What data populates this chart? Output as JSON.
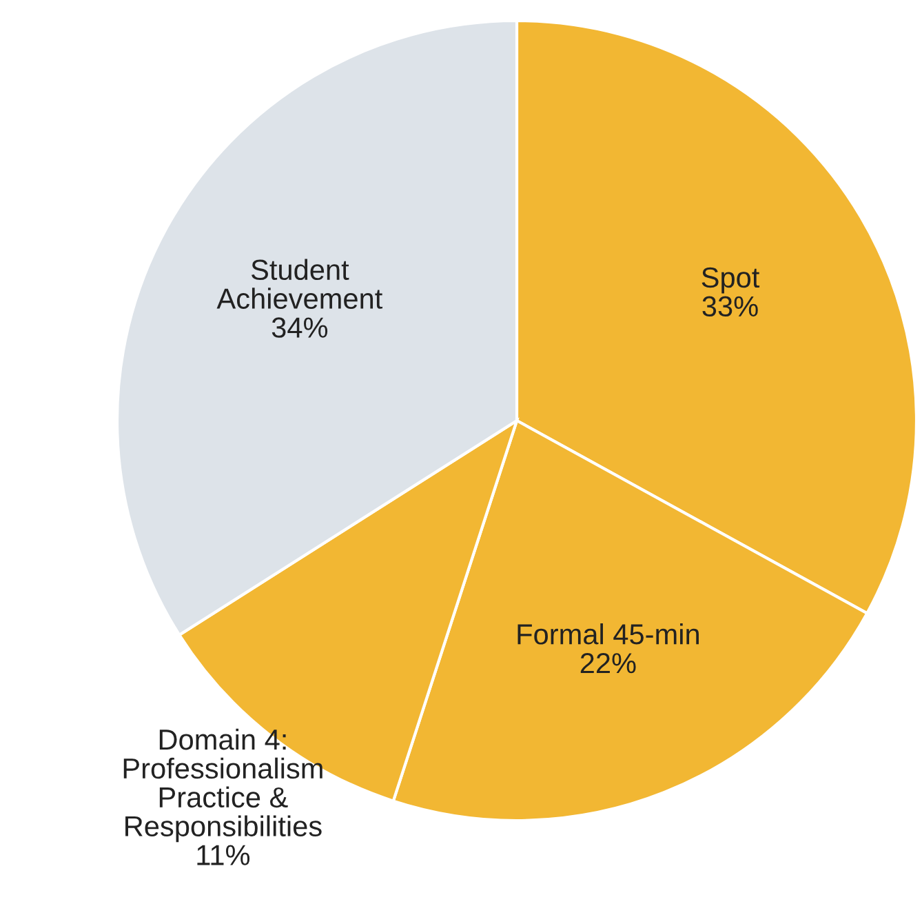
{
  "chart_data": {
    "type": "pie",
    "categories": [
      "Spot",
      "Formal 45-min",
      "Domain 4:\nProfessionalism\nPractice &\nResponsibilities",
      "Student\nAchievement"
    ],
    "values": [
      33,
      22,
      11,
      34
    ],
    "colors": [
      "#f2b733",
      "#f2b733",
      "#f2b733",
      "#dde3e9"
    ],
    "value_labels": [
      "33%",
      "22%",
      "11%",
      "34%"
    ],
    "legend": false
  }
}
